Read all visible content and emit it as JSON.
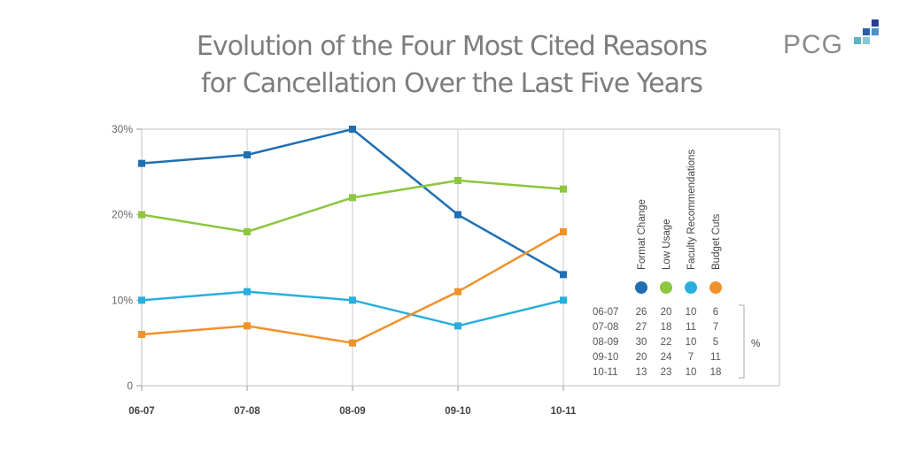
{
  "title_line1": "Evolution of the Four Most Cited Reasons",
  "title_line2": "for Cancellation Over the Last Five Years",
  "logo_text": "PCG",
  "chart_data": {
    "type": "line",
    "title": "Evolution of the Four Most Cited Reasons for Cancellation Over the Last Five Years",
    "categories": [
      "06-07",
      "07-08",
      "08-09",
      "09-10",
      "10-11"
    ],
    "y_tick_labels": [
      "0",
      "10%",
      "20%",
      "30%"
    ],
    "ylim": [
      0,
      30
    ],
    "grid": "vertical",
    "legend_position": "right",
    "series": [
      {
        "name": "Format Change",
        "color": "#1f6fb2",
        "values": [
          26,
          27,
          30,
          20,
          13
        ]
      },
      {
        "name": "Low Usage",
        "color": "#8dc63f",
        "values": [
          20,
          18,
          22,
          24,
          23
        ]
      },
      {
        "name": "Faculty Recommendations",
        "color": "#29aee0",
        "values": [
          10,
          11,
          10,
          7,
          10
        ]
      },
      {
        "name": "Budget Cuts",
        "color": "#f0922b",
        "values": [
          6,
          7,
          5,
          11,
          18
        ]
      }
    ],
    "table_unit": "%"
  }
}
